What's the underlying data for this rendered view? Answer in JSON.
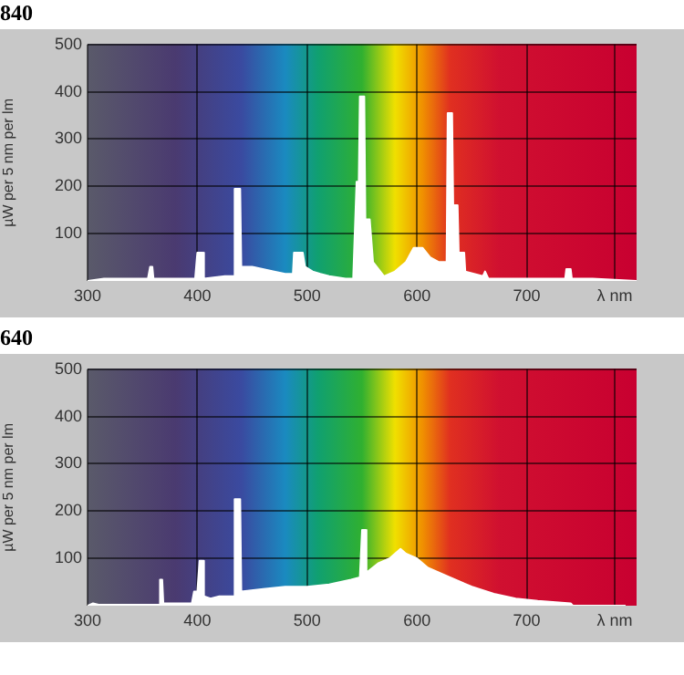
{
  "chart_data": [
    {
      "type": "area",
      "title": "840",
      "ylabel": "µW per 5 nm per lm",
      "xlim": [
        300,
        800
      ],
      "xticks": [
        300,
        400,
        500,
        600,
        700,
        {
          "value": 780,
          "label": "λ nm"
        }
      ],
      "ylim": [
        0,
        500
      ],
      "yticks": [
        100,
        200,
        300,
        400,
        500
      ],
      "grid": true,
      "legend": false,
      "series": [
        {
          "color": "#ffffff",
          "x": [
            300,
            315,
            355,
            357,
            359,
            360,
            398,
            400,
            405,
            406,
            425,
            433,
            434,
            439,
            440,
            450,
            470,
            480,
            487,
            488,
            496,
            498,
            505,
            512,
            520,
            535,
            541,
            542,
            545,
            547,
            548,
            552,
            553,
            557,
            560,
            570,
            580,
            590,
            597,
            605,
            612,
            620,
            627,
            628,
            632,
            633,
            637,
            638,
            643,
            644,
            660,
            662,
            665,
            700,
            720,
            735,
            736,
            740,
            741,
            760,
            800
          ],
          "values": [
            0,
            5,
            5,
            30,
            30,
            5,
            5,
            60,
            60,
            5,
            10,
            10,
            195,
            195,
            30,
            30,
            20,
            15,
            15,
            60,
            60,
            30,
            20,
            15,
            10,
            5,
            5,
            10,
            210,
            210,
            390,
            390,
            130,
            130,
            40,
            10,
            20,
            40,
            70,
            70,
            50,
            40,
            40,
            355,
            355,
            160,
            160,
            60,
            60,
            20,
            10,
            20,
            5,
            5,
            5,
            5,
            25,
            25,
            5,
            5,
            0
          ]
        }
      ]
    },
    {
      "type": "area",
      "title": "640",
      "ylabel": "µW per 5 nm per lm",
      "xlim": [
        300,
        800
      ],
      "xticks": [
        300,
        400,
        500,
        600,
        700,
        {
          "value": 780,
          "label": "λ nm"
        }
      ],
      "ylim": [
        0,
        500
      ],
      "yticks": [
        100,
        200,
        300,
        400,
        500
      ],
      "grid": true,
      "legend": false,
      "series": [
        {
          "color": "#ffffff",
          "x": [
            300,
            305,
            310,
            365,
            366,
            368,
            369,
            395,
            397,
            400,
            402,
            405,
            406,
            412,
            420,
            433,
            434,
            439,
            440,
            460,
            480,
            500,
            520,
            540,
            548,
            550,
            553,
            554,
            565,
            575,
            585,
            590,
            600,
            610,
            630,
            650,
            670,
            690,
            710,
            740,
            742,
            790
          ],
          "values": [
            0,
            5,
            2,
            2,
            55,
            55,
            5,
            5,
            30,
            30,
            95,
            95,
            20,
            15,
            20,
            20,
            225,
            225,
            30,
            35,
            40,
            40,
            45,
            55,
            60,
            160,
            160,
            70,
            90,
            100,
            120,
            110,
            100,
            80,
            60,
            40,
            25,
            15,
            10,
            5,
            0,
            0
          ]
        }
      ]
    }
  ]
}
